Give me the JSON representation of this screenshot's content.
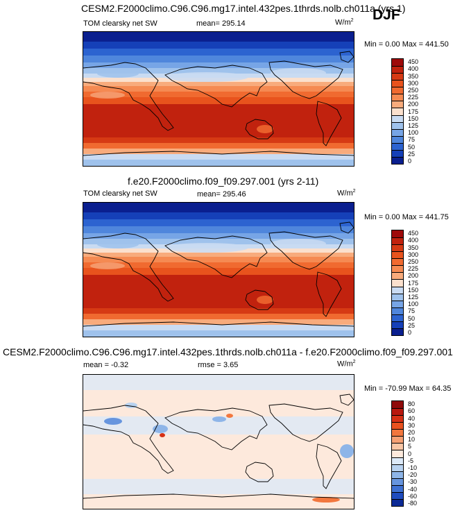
{
  "season": "DJF",
  "panels": [
    {
      "title": "CESM2.F2000climo.C96.C96.mg17.intel.432pes.1thrds.nolb.ch011a (yrs 1)",
      "variable": "TOM clearsky net SW",
      "stat1": "mean= 295.14",
      "stat2": "",
      "units": "W/m",
      "units_sup": "2",
      "minmax": "Min =   0.00 Max = 441.50",
      "colorbar": {
        "levels": [
          "450",
          "400",
          "350",
          "300",
          "250",
          "225",
          "200",
          "175",
          "150",
          "125",
          "100",
          "75",
          "50",
          "25",
          "0"
        ],
        "colors": [
          "#9e0a0a",
          "#c1220e",
          "#d63a14",
          "#e8531d",
          "#f06a30",
          "#f58a52",
          "#f8ab7c",
          "#fbe0cd",
          "#c9dbf2",
          "#9fc2ec",
          "#77a5e6",
          "#4f86dc",
          "#2c63d0",
          "#1540b8",
          "#0a1f8f"
        ]
      }
    },
    {
      "title": "f.e20.F2000climo.f09_f09.297.001 (yrs 2-11)",
      "variable": "TOM clearsky net SW",
      "stat1": "mean= 295.46",
      "stat2": "",
      "units": "W/m",
      "units_sup": "2",
      "minmax": "Min =   0.00 Max = 441.75",
      "colorbar": {
        "levels": [
          "450",
          "400",
          "350",
          "300",
          "250",
          "225",
          "200",
          "175",
          "150",
          "125",
          "100",
          "75",
          "50",
          "25",
          "0"
        ],
        "colors": [
          "#9e0a0a",
          "#c1220e",
          "#d63a14",
          "#e8531d",
          "#f06a30",
          "#f58a52",
          "#f8ab7c",
          "#fbe0cd",
          "#c9dbf2",
          "#9fc2ec",
          "#77a5e6",
          "#4f86dc",
          "#2c63d0",
          "#1540b8",
          "#0a1f8f"
        ]
      }
    },
    {
      "title": "CESM2.F2000climo.C96.C96.mg17.intel.432pes.1thrds.nolb.ch011a - f.e20.F2000climo.f09_f09.297.001",
      "variable": "",
      "stat1": "mean =   -0.32",
      "stat2": "rmse =   3.65",
      "units": "W/m",
      "units_sup": "2",
      "minmax": "Min = -70.99 Max =  64.35",
      "colorbar": {
        "levels": [
          "80",
          "60",
          "40",
          "30",
          "20",
          "10",
          "5",
          "0",
          "-5",
          "-10",
          "-20",
          "-30",
          "-40",
          "-60",
          "-80"
        ],
        "colors": [
          "#8f0a0a",
          "#b8180f",
          "#d63015",
          "#e9521f",
          "#f2773e",
          "#f6a074",
          "#f9c6a6",
          "#fde9dc",
          "#dce9f8",
          "#b8d2f0",
          "#8eb5e8",
          "#6795de",
          "#3f71d2",
          "#1f4cbf",
          "#0c2a96"
        ]
      }
    }
  ]
}
